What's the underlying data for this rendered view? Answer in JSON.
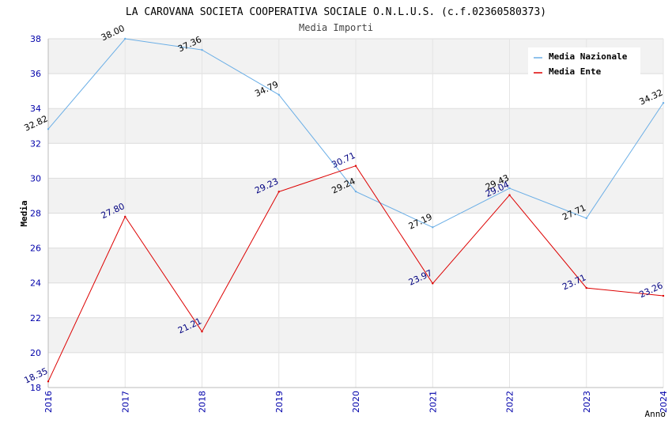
{
  "chart_data": {
    "type": "line",
    "title": "LA CAROVANA SOCIETA COOPERATIVA SOCIALE O.N.L.U.S. (c.f.02360580373)",
    "subtitle": "Media Importi",
    "xlabel": "Anno",
    "ylabel": "Media",
    "x": [
      "2016",
      "2017",
      "2018",
      "2019",
      "2020",
      "2021",
      "2022",
      "2023",
      "2024"
    ],
    "ylim": [
      18,
      38
    ],
    "yticks": [
      "18",
      "20",
      "22",
      "24",
      "26",
      "28",
      "30",
      "32",
      "34",
      "36",
      "38"
    ],
    "grid": true,
    "legend_position": "top-right",
    "series": [
      {
        "name": "Media Nazionale",
        "color": "#6aaee6",
        "label_color": "#000000",
        "values": [
          32.82,
          38.0,
          37.36,
          34.79,
          29.24,
          27.19,
          29.43,
          27.71,
          34.32
        ],
        "labels": [
          "32.82",
          "38.00",
          "37.36",
          "34.79",
          "29.24",
          "27.19",
          "29.43",
          "27.71",
          "34.32"
        ]
      },
      {
        "name": "Media Ente",
        "color": "#dd0000",
        "label_color": "#000080",
        "values": [
          18.35,
          27.8,
          21.21,
          29.23,
          30.71,
          23.97,
          29.04,
          23.71,
          23.26
        ],
        "labels": [
          "18.35",
          "27.80",
          "21.21",
          "29.23",
          "30.71",
          "23.97",
          "29.04",
          "23.71",
          "23.26"
        ]
      }
    ]
  }
}
